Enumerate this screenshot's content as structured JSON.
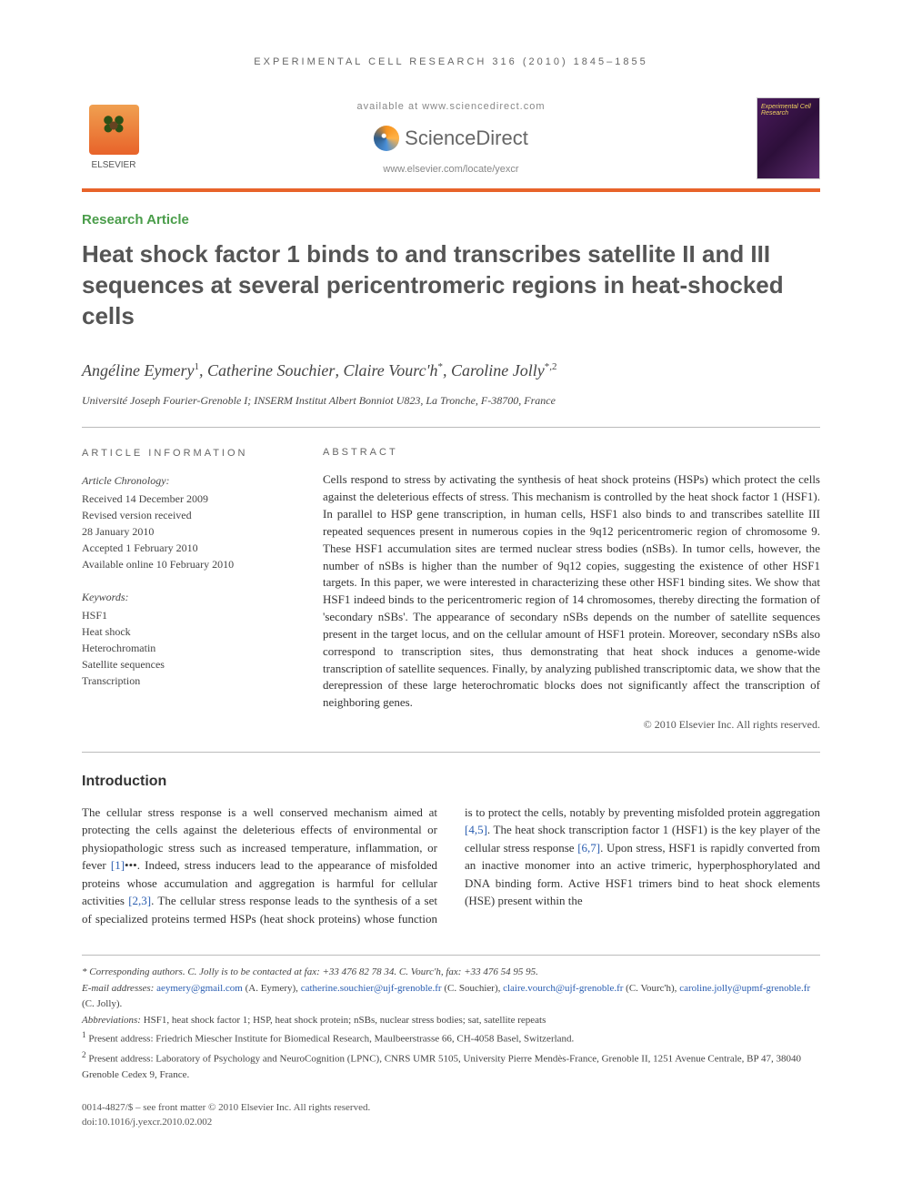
{
  "runningHeader": "EXPERIMENTAL CELL RESEARCH 316 (2010) 1845–1855",
  "header": {
    "publisherName": "ELSEVIER",
    "availableAt": "available at www.sciencedirect.com",
    "sdBrand": "ScienceDirect",
    "journalUrl": "www.elsevier.com/locate/yexcr",
    "coverTitle": "Experimental Cell Research"
  },
  "articleType": "Research Article",
  "title": "Heat shock factor 1 binds to and transcribes satellite II and III sequences at several pericentromeric regions in heat-shocked cells",
  "authors": [
    {
      "name": "Angéline Eymery",
      "marks": "1"
    },
    {
      "name": "Catherine Souchier",
      "marks": ""
    },
    {
      "name": "Claire Vourc'h",
      "marks": "*"
    },
    {
      "name": "Caroline Jolly",
      "marks": "*,2"
    }
  ],
  "affiliation": "Université Joseph Fourier-Grenoble I; INSERM Institut Albert Bonniot U823, La Tronche, F-38700, France",
  "articleInfo": {
    "heading": "ARTICLE INFORMATION",
    "chronologyTitle": "Article Chronology:",
    "chronology": [
      "Received 14 December 2009",
      "Revised version received",
      "28 January 2010",
      "Accepted 1 February 2010",
      "Available online 10 February 2010"
    ],
    "keywordsTitle": "Keywords:",
    "keywords": [
      "HSF1",
      "Heat shock",
      "Heterochromatin",
      "Satellite sequences",
      "Transcription"
    ]
  },
  "abstract": {
    "heading": "ABSTRACT",
    "text": "Cells respond to stress by activating the synthesis of heat shock proteins (HSPs) which protect the cells against the deleterious effects of stress. This mechanism is controlled by the heat shock factor 1 (HSF1). In parallel to HSP gene transcription, in human cells, HSF1 also binds to and transcribes satellite III repeated sequences present in numerous copies in the 9q12 pericentromeric region of chromosome 9. These HSF1 accumulation sites are termed nuclear stress bodies (nSBs). In tumor cells, however, the number of nSBs is higher than the number of 9q12 copies, suggesting the existence of other HSF1 targets. In this paper, we were interested in characterizing these other HSF1 binding sites. We show that HSF1 indeed binds to the pericentromeric region of 14 chromosomes, thereby directing the formation of 'secondary nSBs'. The appearance of secondary nSBs depends on the number of satellite sequences present in the target locus, and on the cellular amount of HSF1 protein. Moreover, secondary nSBs also correspond to transcription sites, thus demonstrating that heat shock induces a genome-wide transcription of satellite sequences. Finally, by analyzing published transcriptomic data, we show that the derepression of these large heterochromatic blocks does not significantly affect the transcription of neighboring genes.",
    "copyright": "© 2010 Elsevier Inc. All rights reserved."
  },
  "intro": {
    "heading": "Introduction",
    "col1": "The cellular stress response is a well conserved mechanism aimed at protecting the cells against the deleterious effects of environmental or physiopathologic stress such as increased temperature, inflammation, or fever [1]•••. Indeed, stress inducers lead to the appearance of misfolded proteins whose accumulation and aggregation is harmful for cellular activities [2,3]. The cellular",
    "col2": "stress response leads to the synthesis of a set of specialized proteins termed HSPs (heat shock proteins) whose function is to protect the cells, notably by preventing misfolded protein aggregation [4,5]. The heat shock transcription factor 1 (HSF1) is the key player of the cellular stress response [6,7]. Upon stress, HSF1 is rapidly converted from an inactive monomer into an active trimeric, hyperphosphorylated and DNA binding form. Active HSF1 trimers bind to heat shock elements (HSE) present within the",
    "refs": {
      "r1": "[1]",
      "r23": "[2,3]",
      "r45": "[4,5]",
      "r67": "[6,7]"
    }
  },
  "footnotes": {
    "corresponding": "* Corresponding authors. C. Jolly is to be contacted at fax: +33 476 82 78 34. C. Vourc'h, fax: +33 476 54 95 95.",
    "emailsLabel": "E-mail addresses:",
    "emails": [
      {
        "addr": "aeymery@gmail.com",
        "who": "(A. Eymery)"
      },
      {
        "addr": "catherine.souchier@ujf-grenoble.fr",
        "who": "(C. Souchier)"
      },
      {
        "addr": "claire.vourch@ujf-grenoble.fr",
        "who": "(C. Vourc'h)"
      },
      {
        "addr": "caroline.jolly@upmf-grenoble.fr",
        "who": "(C. Jolly)"
      }
    ],
    "abbrevLabel": "Abbreviations:",
    "abbrev": "HSF1, heat shock factor 1; HSP, heat shock protein; nSBs, nuclear stress bodies; sat, satellite repeats",
    "fn1": "Present address: Friedrich Miescher Institute for Biomedical Research, Maulbeerstrasse 66, CH-4058 Basel, Switzerland.",
    "fn2": "Present address: Laboratory of Psychology and NeuroCognition (LPNC), CNRS UMR 5105, University Pierre Mendès-France, Grenoble II, 1251 Avenue Centrale, BP 47, 38040 Grenoble Cedex 9, France."
  },
  "bottom": {
    "issn": "0014-4827/$ – see front matter © 2010 Elsevier Inc. All rights reserved.",
    "doi": "doi:10.1016/j.yexcr.2010.02.002"
  },
  "colors": {
    "accent": "#e8632a",
    "green": "#4a9d4a",
    "link": "#2a5db0"
  }
}
